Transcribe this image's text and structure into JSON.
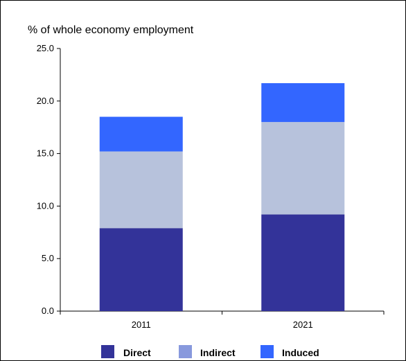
{
  "chart_data": {
    "type": "bar",
    "stacked": true,
    "title": "% of whole economy employment",
    "categories": [
      "2011",
      "2021"
    ],
    "series": [
      {
        "name": "Direct",
        "values": [
          7.9,
          9.2
        ],
        "color": "#333399"
      },
      {
        "name": "Indirect",
        "values": [
          7.3,
          8.8
        ],
        "color": "#b7c2dc"
      },
      {
        "name": "Induced",
        "values": [
          3.3,
          3.7
        ],
        "color": "#3366ff"
      }
    ],
    "legend_colors": [
      "#333399",
      "#8899dd",
      "#3366ff"
    ],
    "ylim": [
      0,
      25
    ],
    "yticks": [
      "0.0",
      "5.0",
      "10.0",
      "15.0",
      "20.0",
      "25.0"
    ],
    "legend_position": "bottom",
    "grid": false
  }
}
